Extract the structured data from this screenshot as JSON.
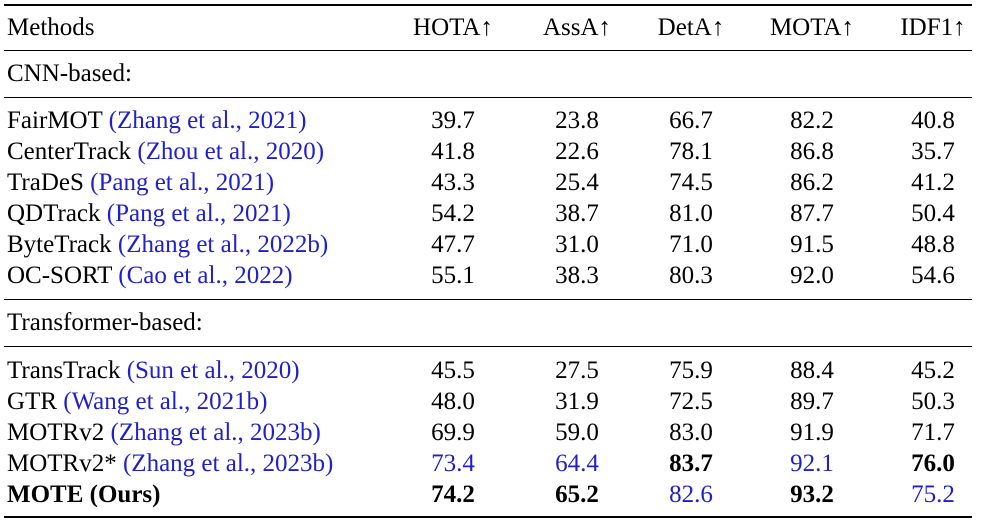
{
  "header": {
    "method": "Methods",
    "cols": [
      "HOTA↑",
      "AssA↑",
      "DetA↑",
      "MOTA↑",
      "IDF1↑"
    ]
  },
  "sections": {
    "cnn": "CNN-based:",
    "transformer": "Transformer-based:"
  },
  "cnn_rows": [
    {
      "name": "FairMOT",
      "cite": "(Zhang et al., 2021)",
      "v": [
        "39.7",
        "23.8",
        "66.7",
        "82.2",
        "40.8"
      ]
    },
    {
      "name": "CenterTrack",
      "cite": "(Zhou et al., 2020)",
      "v": [
        "41.8",
        "22.6",
        "78.1",
        "86.8",
        "35.7"
      ]
    },
    {
      "name": "TraDeS",
      "cite": "(Pang et al., 2021)",
      "v": [
        "43.3",
        "25.4",
        "74.5",
        "86.2",
        "41.2"
      ]
    },
    {
      "name": "QDTrack",
      "cite": "(Pang et al., 2021)",
      "v": [
        "54.2",
        "38.7",
        "81.0",
        "87.7",
        "50.4"
      ]
    },
    {
      "name": "ByteTrack",
      "cite": "(Zhang et al., 2022b)",
      "v": [
        "47.7",
        "31.0",
        "71.0",
        "91.5",
        "48.8"
      ]
    },
    {
      "name": "OC-SORT",
      "cite": "(Cao et al., 2022)",
      "v": [
        "55.1",
        "38.3",
        "80.3",
        "92.0",
        "54.6"
      ]
    }
  ],
  "transformer_rows": [
    {
      "name": "TransTrack",
      "cite": "(Sun et al., 2020)",
      "v": [
        "45.5",
        "27.5",
        "75.9",
        "88.4",
        "45.2"
      ]
    },
    {
      "name": "GTR",
      "cite": "(Wang et al., 2021b)",
      "v": [
        "48.0",
        "31.9",
        "72.5",
        "89.7",
        "50.3"
      ]
    },
    {
      "name": "MOTRv2",
      "cite": "(Zhang et al., 2023b)",
      "v": [
        "69.9",
        "59.0",
        "83.0",
        "91.9",
        "71.7"
      ]
    },
    {
      "name": "MOTRv2*",
      "cite": "(Zhang et al., 2023b)",
      "v": [
        "73.4",
        "64.4",
        "83.7",
        "92.1",
        "76.0"
      ]
    },
    {
      "name": "MOTE (Ours)",
      "cite": "",
      "v": [
        "74.2",
        "65.2",
        "82.6",
        "93.2",
        "75.2"
      ]
    }
  ],
  "colors": {
    "citation": "#1f1fcc",
    "second_best": "#1f1fcc",
    "text": "#000000"
  }
}
